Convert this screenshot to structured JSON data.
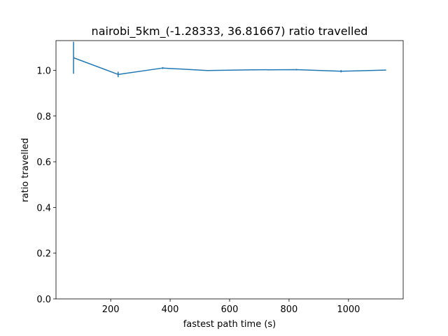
{
  "chart_data": {
    "type": "line",
    "title": "nairobi_5km_(-1.28333, 36.81667) ratio travelled",
    "xlabel": "fastest path time (s)",
    "ylabel": "ratio travelled",
    "xlim": [
      16,
      1184
    ],
    "ylim": [
      0.0,
      1.13
    ],
    "xticks": [
      200,
      400,
      600,
      800,
      1000
    ],
    "yticks": [
      0.0,
      0.2,
      0.4,
      0.6,
      0.8,
      1.0
    ],
    "ytick_labels": [
      "0.0",
      "0.2",
      "0.4",
      "0.6",
      "0.8",
      "1.0"
    ],
    "grid": false,
    "series": [
      {
        "color": "#1f77b4",
        "x": [
          75,
          225,
          375,
          525,
          675,
          825,
          975,
          1125
        ],
        "y": [
          1.055,
          0.982,
          1.01,
          0.999,
          1.002,
          1.003,
          0.996,
          1.001
        ],
        "yerr": [
          0.07,
          0.012,
          0.004,
          0.002,
          0.002,
          0.003,
          0.005,
          0.002
        ]
      }
    ]
  }
}
